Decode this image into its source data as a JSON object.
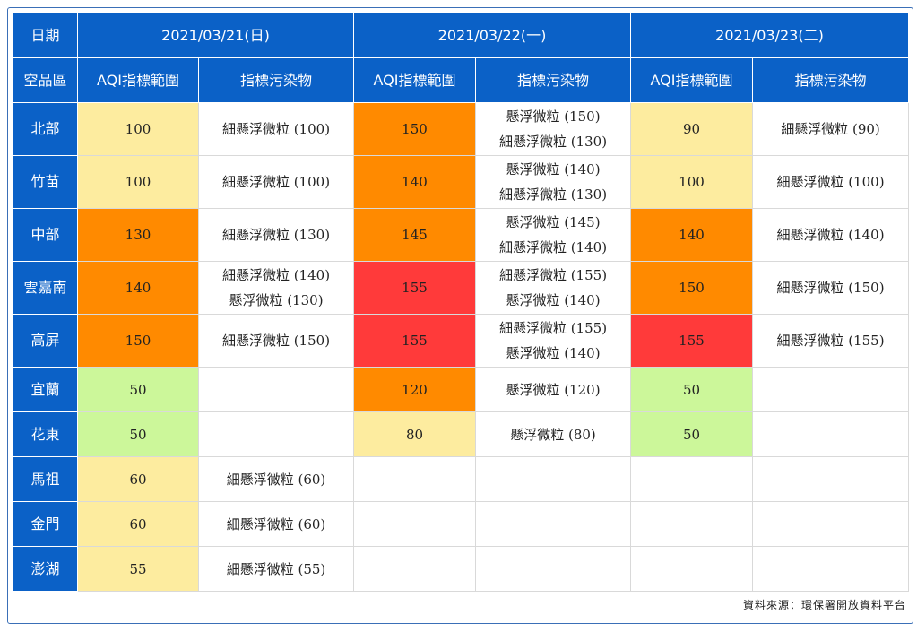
{
  "header": {
    "date_label": "日期",
    "region_label": "空品區",
    "dates": [
      "2021/03/21(日)",
      "2021/03/22(一)",
      "2021/03/23(二)"
    ],
    "aqi_label": "AQI指標範圍",
    "pollutant_label": "指標污染物"
  },
  "colors": {
    "header_blue": "#0b61c7",
    "good_green": "#ccf79a",
    "moderate_yellow": "#fdec9f",
    "sensitive_orange": "#ff8a00",
    "unhealthy_red": "#ff3a3a"
  },
  "rows": [
    {
      "region": "北部",
      "days": [
        {
          "aqi": "100",
          "level": "moderate",
          "pollutants": [
            "細懸浮微粒 (100)"
          ]
        },
        {
          "aqi": "150",
          "level": "sensitive",
          "pollutants": [
            "懸浮微粒 (150)",
            "細懸浮微粒 (130)"
          ]
        },
        {
          "aqi": "90",
          "level": "moderate",
          "pollutants": [
            "細懸浮微粒 (90)"
          ]
        }
      ]
    },
    {
      "region": "竹苗",
      "days": [
        {
          "aqi": "100",
          "level": "moderate",
          "pollutants": [
            "細懸浮微粒 (100)"
          ]
        },
        {
          "aqi": "140",
          "level": "sensitive",
          "pollutants": [
            "懸浮微粒 (140)",
            "細懸浮微粒 (130)"
          ]
        },
        {
          "aqi": "100",
          "level": "moderate",
          "pollutants": [
            "細懸浮微粒 (100)"
          ]
        }
      ]
    },
    {
      "region": "中部",
      "days": [
        {
          "aqi": "130",
          "level": "sensitive",
          "pollutants": [
            "細懸浮微粒 (130)"
          ]
        },
        {
          "aqi": "145",
          "level": "sensitive",
          "pollutants": [
            "懸浮微粒 (145)",
            "細懸浮微粒 (140)"
          ]
        },
        {
          "aqi": "140",
          "level": "sensitive",
          "pollutants": [
            "細懸浮微粒 (140)"
          ]
        }
      ]
    },
    {
      "region": "雲嘉南",
      "days": [
        {
          "aqi": "140",
          "level": "sensitive",
          "pollutants": [
            "細懸浮微粒 (140)",
            "懸浮微粒 (130)"
          ]
        },
        {
          "aqi": "155",
          "level": "unhealthy",
          "pollutants": [
            "細懸浮微粒 (155)",
            "懸浮微粒 (140)"
          ]
        },
        {
          "aqi": "150",
          "level": "sensitive",
          "pollutants": [
            "細懸浮微粒 (150)"
          ]
        }
      ]
    },
    {
      "region": "高屏",
      "days": [
        {
          "aqi": "150",
          "level": "sensitive",
          "pollutants": [
            "細懸浮微粒 (150)"
          ]
        },
        {
          "aqi": "155",
          "level": "unhealthy",
          "pollutants": [
            "細懸浮微粒 (155)",
            "懸浮微粒 (140)"
          ]
        },
        {
          "aqi": "155",
          "level": "unhealthy",
          "pollutants": [
            "細懸浮微粒 (155)"
          ]
        }
      ]
    },
    {
      "region": "宜蘭",
      "days": [
        {
          "aqi": "50",
          "level": "good",
          "pollutants": []
        },
        {
          "aqi": "120",
          "level": "sensitive",
          "pollutants": [
            "懸浮微粒 (120)"
          ]
        },
        {
          "aqi": "50",
          "level": "good",
          "pollutants": []
        }
      ]
    },
    {
      "region": "花東",
      "days": [
        {
          "aqi": "50",
          "level": "good",
          "pollutants": []
        },
        {
          "aqi": "80",
          "level": "moderate",
          "pollutants": [
            "懸浮微粒 (80)"
          ]
        },
        {
          "aqi": "50",
          "level": "good",
          "pollutants": []
        }
      ]
    },
    {
      "region": "馬祖",
      "days": [
        {
          "aqi": "60",
          "level": "moderate",
          "pollutants": [
            "細懸浮微粒 (60)"
          ]
        },
        {
          "aqi": "",
          "level": "none",
          "pollutants": []
        },
        {
          "aqi": "",
          "level": "none",
          "pollutants": []
        }
      ]
    },
    {
      "region": "金門",
      "days": [
        {
          "aqi": "60",
          "level": "moderate",
          "pollutants": [
            "細懸浮微粒 (60)"
          ]
        },
        {
          "aqi": "",
          "level": "none",
          "pollutants": []
        },
        {
          "aqi": "",
          "level": "none",
          "pollutants": []
        }
      ]
    },
    {
      "region": "澎湖",
      "days": [
        {
          "aqi": "55",
          "level": "moderate",
          "pollutants": [
            "細懸浮微粒 (55)"
          ]
        },
        {
          "aqi": "",
          "level": "none",
          "pollutants": []
        },
        {
          "aqi": "",
          "level": "none",
          "pollutants": []
        }
      ]
    }
  ],
  "source": "資料來源：環保署開放資料平台"
}
